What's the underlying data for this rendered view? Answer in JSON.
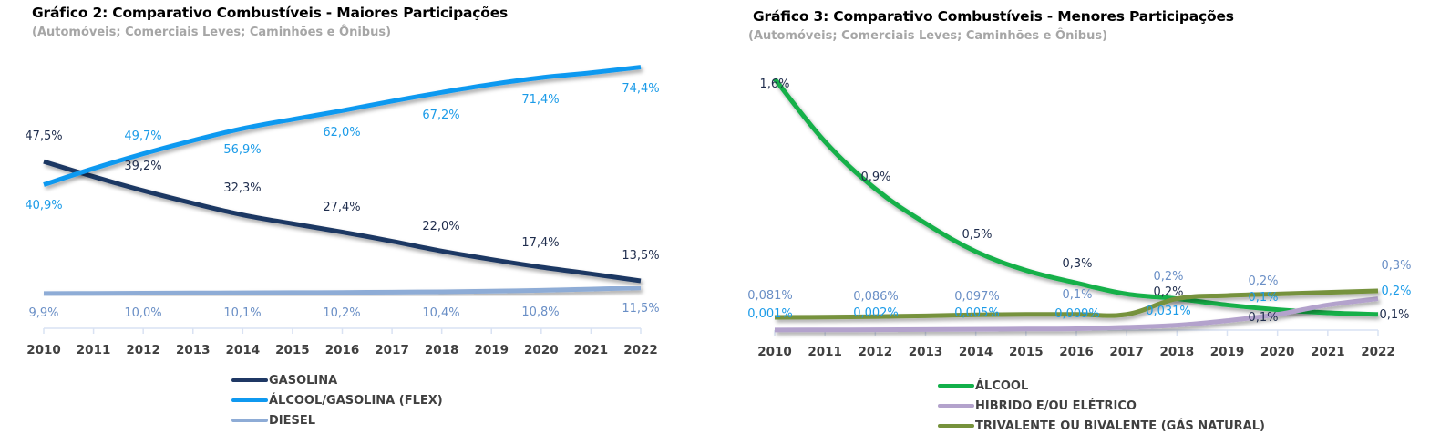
{
  "chart_data": [
    {
      "type": "line",
      "title": "Gráfico 2: Comparativo Combustíveis - Maiores Participações",
      "subtitle": "(Automóveis; Comerciais Leves; Caminhões e Ônibus)",
      "xlabel": "",
      "ylabel": "",
      "categories": [
        "2010",
        "2011",
        "2012",
        "2013",
        "2014",
        "2015",
        "2016",
        "2017",
        "2018",
        "2019",
        "2020",
        "2021",
        "2022"
      ],
      "ylim": [
        0,
        80
      ],
      "grid": false,
      "legend_position": "bottom",
      "series": [
        {
          "name": "GASOLINA",
          "color": "#1f3864",
          "values": [
            47.5,
            43.2,
            39.2,
            35.6,
            32.3,
            29.8,
            27.4,
            24.8,
            22.0,
            19.6,
            17.4,
            15.5,
            13.5
          ],
          "labels": {
            "0": "47,5%",
            "2": "39,2%",
            "4": "32,3%",
            "6": "27,4%",
            "8": "22,0%",
            "10": "17,4%",
            "12": "13,5%"
          },
          "label_color": "#1f2d4d"
        },
        {
          "name": "ÁLCOOL/GASOLINA (FLEX)",
          "color": "#0f99f0",
          "values": [
            40.9,
            45.5,
            49.7,
            53.5,
            56.9,
            59.5,
            62.0,
            64.7,
            67.2,
            69.5,
            71.4,
            72.8,
            74.4
          ],
          "labels": {
            "0": "40,9%",
            "2": "49,7%",
            "4": "56,9%",
            "6": "62,0%",
            "8": "67,2%",
            "10": "71,4%",
            "12": "74,4%"
          },
          "label_color": "#1b9be8"
        },
        {
          "name": "DIESEL",
          "color": "#8eacd6",
          "values": [
            9.9,
            9.95,
            10.0,
            10.05,
            10.1,
            10.15,
            10.2,
            10.3,
            10.4,
            10.6,
            10.8,
            11.15,
            11.5
          ],
          "labels": {
            "0": "9,9%",
            "2": "10,0%",
            "4": "10,1%",
            "6": "10,2%",
            "8": "10,4%",
            "10": "10,8%",
            "12": "11,5%"
          },
          "label_color": "#6a8fc6"
        }
      ]
    },
    {
      "type": "line",
      "title": "Gráfico 3: Comparativo Combustíveis - Menores Participações",
      "subtitle": "(Automóveis; Comerciais Leves; Caminhões e Ônibus)",
      "xlabel": "",
      "ylabel": "",
      "categories": [
        "2010",
        "2011",
        "2012",
        "2013",
        "2014",
        "2015",
        "2016",
        "2017",
        "2018",
        "2019",
        "2020",
        "2021",
        "2022"
      ],
      "ylim": [
        0,
        1.8
      ],
      "grid": false,
      "legend_position": "bottom",
      "series": [
        {
          "name": "ÁLCOOL",
          "color": "#12b04a",
          "values": [
            1.6,
            1.2,
            0.9,
            0.68,
            0.5,
            0.38,
            0.3,
            0.23,
            0.2,
            0.16,
            0.13,
            0.11,
            0.1
          ],
          "labels": {
            "0": "1,6%",
            "2": "0,9%",
            "4": "0,5%",
            "6": "0,3%",
            "8": "0,2%",
            "10": "0,1%",
            "12": "0,1%"
          },
          "label_color": "#1f2d4d"
        },
        {
          "name": "HIBRIDO E/OU ELÉTRICO",
          "color": "#b3a2cc",
          "values": [
            0.001,
            0.0015,
            0.002,
            0.0035,
            0.005,
            0.007,
            0.009,
            0.018,
            0.031,
            0.06,
            0.1,
            0.16,
            0.2
          ],
          "labels": {
            "0": "0,001%",
            "2": "0,002%",
            "4": "0,005%",
            "6": "0,009%",
            "8": "0,031%",
            "10": "0,1%",
            "12": "0,2%"
          },
          "label_color": "#1b9be8"
        },
        {
          "name": "TRIVALENTE OU BIVALENTE (GÁS NATURAL)",
          "color": "#76923c",
          "values": [
            0.081,
            0.083,
            0.086,
            0.091,
            0.097,
            0.1,
            0.1,
            0.1,
            0.2,
            0.22,
            0.23,
            0.24,
            0.25
          ],
          "labels": {
            "0": "0,081%",
            "2": "0,086%",
            "4": "0,097%",
            "6": "0,1%",
            "8": "0,2%",
            "10": "0,2%",
            "12": "0,3%"
          },
          "label_color": "#6a8fc6"
        }
      ]
    }
  ]
}
